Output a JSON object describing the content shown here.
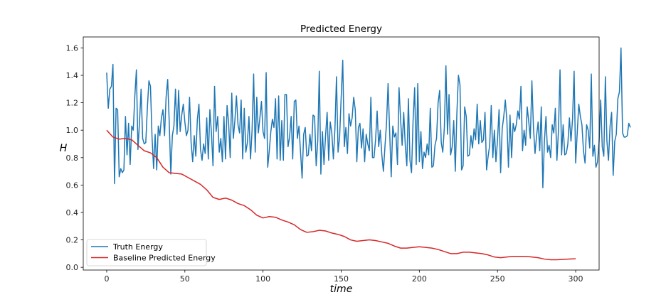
{
  "chart_data": {
    "type": "line",
    "title": "Predicted Energy",
    "xlabel": "time",
    "ylabel": "H",
    "xlim": [
      -15,
      315
    ],
    "ylim": [
      -0.02,
      1.68
    ],
    "x_ticks": [
      0,
      50,
      100,
      150,
      200,
      250,
      300
    ],
    "x_tick_labels": [
      "0",
      "50",
      "100",
      "150",
      "200",
      "250",
      "300"
    ],
    "y_ticks": [
      0.0,
      0.2,
      0.4,
      0.6,
      0.8,
      1.0,
      1.2,
      1.4,
      1.6
    ],
    "y_tick_labels": [
      "0.0",
      "0.2",
      "0.4",
      "0.6",
      "0.8",
      "1.0",
      "1.2",
      "1.4",
      "1.6"
    ],
    "grid": false,
    "legend_position": "lower-left",
    "series": [
      {
        "name": "Truth Energy",
        "color": "#1f77b4",
        "x_start": 0,
        "x_step": 1,
        "values": [
          1.42,
          1.16,
          1.3,
          1.32,
          1.48,
          0.61,
          1.16,
          1.15,
          0.66,
          0.72,
          0.69,
          0.71,
          1.1,
          0.82,
          1.05,
          0.75,
          1.03,
          1.0,
          1.25,
          1.44,
          0.86,
          1.06,
          1.3,
          0.94,
          0.9,
          0.91,
          1.16,
          1.36,
          1.32,
          0.95,
          0.72,
          0.97,
          0.71,
          1.03,
          0.96,
          1.09,
          1.15,
          0.96,
          1.24,
          1.37,
          1.06,
          0.68,
          0.96,
          1.03,
          1.3,
          0.97,
          1.29,
          0.99,
          1.11,
          1.19,
          1.06,
          0.96,
          1.0,
          1.24,
          0.91,
          0.77,
          0.96,
          0.81,
          1.08,
          1.19,
          0.86,
          0.78,
          0.9,
          0.83,
          1.09,
          0.79,
          1.15,
          0.98,
          0.74,
          1.32,
          0.99,
          1.1,
          0.84,
          0.94,
          0.77,
          1.1,
          0.79,
          1.18,
          1.05,
          0.8,
          1.27,
          0.94,
          1.07,
          1.25,
          1.04,
          0.98,
          1.22,
          0.79,
          1.16,
          0.84,
          0.91,
          1.1,
          0.79,
          1.0,
          1.41,
          0.84,
          1.24,
          0.98,
          1.09,
          1.21,
          0.99,
          0.94,
          1.42,
          0.73,
          0.85,
          0.99,
          1.08,
          1.02,
          1.23,
          0.79,
          1.25,
          0.78,
          1.07,
          0.78,
          1.26,
          1.26,
          0.88,
          0.95,
          1.1,
          0.79,
          1.21,
          1.22,
          0.94,
          1.03,
          0.84,
          0.65,
          0.97,
          1.02,
          0.81,
          0.82,
          0.97,
          0.85,
          1.11,
          1.1,
          0.74,
          0.92,
          1.43,
          0.68,
          0.99,
          0.75,
          0.96,
          1.13,
          0.78,
          1.06,
          0.98,
          0.79,
          1.01,
          1.39,
          0.84,
          0.95,
          1.24,
          1.51,
          0.88,
          1.02,
          0.83,
          1.12,
          1.03,
          1.09,
          1.24,
          1.15,
          0.77,
          1.02,
          1.05,
          0.87,
          1.01,
          0.77,
          0.97,
          0.9,
          0.85,
          1.24,
          0.8,
          0.8,
          0.93,
          1.14,
          0.88,
          1.0,
          0.82,
          0.7,
          0.88,
          1.05,
          1.34,
          0.99,
          0.66,
          1.03,
          0.95,
          0.98,
          0.75,
          1.31,
          1.08,
          0.89,
          1.13,
          0.89,
          0.74,
          1.23,
          0.78,
          0.69,
          1.07,
          1.31,
          0.75,
          1.34,
          0.77,
          0.99,
          0.72,
          0.84,
          0.8,
          0.9,
          0.82,
          1.16,
          0.73,
          0.74,
          0.89,
          0.94,
          1.2,
          1.29,
          0.91,
          0.84,
          1.02,
          1.47,
          0.97,
          1.26,
          0.82,
          0.88,
          1.07,
          0.7,
          1.12,
          1.4,
          1.33,
          0.71,
          0.74,
          1.17,
          1.1,
          0.81,
          0.82,
          0.96,
          0.87,
          1.01,
          0.93,
          1.19,
          0.9,
          1.07,
          0.91,
          0.93,
          1.13,
          0.71,
          0.81,
          0.89,
          1.18,
          0.8,
          1.0,
          0.77,
          0.93,
          1.15,
          0.69,
          1.01,
          1.1,
          1.22,
          1.07,
          0.73,
          1.11,
          0.8,
          1.05,
          0.99,
          1.04,
          1.14,
          1.08,
          1.32,
          0.85,
          1.0,
          0.89,
          1.17,
          1.06,
          0.94,
          1.36,
          1.02,
          0.83,
          0.96,
          1.06,
          0.85,
          1.17,
          0.58,
          0.92,
          1.1,
          0.84,
          0.89,
          0.8,
          1.04,
          0.98,
          1.16,
          0.78,
          1.0,
          1.44,
          0.82,
          1.04,
          0.82,
          0.83,
          0.9,
          1.09,
          0.92,
          1.08,
          1.43,
          0.76,
          0.98,
          1.19,
          1.1,
          1.04,
          0.85,
          0.76,
          1.04,
          1.0,
          0.87,
          1.41,
          0.81,
          0.89,
          0.73,
          0.77,
          0.92,
          1.22,
          0.88,
          0.81,
          1.39,
          0.92,
          0.78,
          1.03,
          1.13,
          0.67,
          0.92,
          0.97,
          1.23,
          1.28,
          1.6,
          0.98,
          0.95,
          0.95,
          0.96,
          1.05,
          1.02
        ]
      },
      {
        "name": "Baseline Predicted Energy",
        "color": "#d62728",
        "x": [
          0,
          4,
          8,
          12,
          16,
          20,
          24,
          28,
          32,
          36,
          40,
          44,
          48,
          52,
          56,
          60,
          64,
          68,
          72,
          76,
          80,
          84,
          88,
          92,
          96,
          100,
          104,
          108,
          112,
          116,
          120,
          124,
          128,
          132,
          136,
          140,
          144,
          148,
          152,
          156,
          160,
          164,
          168,
          172,
          176,
          180,
          184,
          188,
          192,
          196,
          200,
          204,
          208,
          212,
          216,
          220,
          224,
          228,
          232,
          236,
          240,
          244,
          248,
          252,
          256,
          260,
          264,
          268,
          272,
          276,
          280,
          284,
          288,
          292,
          296,
          300
        ],
        "values": [
          1.0,
          0.95,
          0.935,
          0.94,
          0.93,
          0.89,
          0.85,
          0.835,
          0.8,
          0.73,
          0.69,
          0.685,
          0.68,
          0.655,
          0.63,
          0.605,
          0.565,
          0.51,
          0.495,
          0.505,
          0.49,
          0.465,
          0.45,
          0.42,
          0.38,
          0.36,
          0.37,
          0.365,
          0.345,
          0.33,
          0.31,
          0.275,
          0.255,
          0.26,
          0.27,
          0.265,
          0.25,
          0.24,
          0.225,
          0.2,
          0.19,
          0.195,
          0.2,
          0.195,
          0.185,
          0.175,
          0.155,
          0.14,
          0.14,
          0.145,
          0.15,
          0.145,
          0.14,
          0.13,
          0.115,
          0.1,
          0.1,
          0.11,
          0.11,
          0.105,
          0.1,
          0.09,
          0.075,
          0.07,
          0.075,
          0.08,
          0.08,
          0.08,
          0.075,
          0.07,
          0.06,
          0.055,
          0.055,
          0.058,
          0.06,
          0.062
        ]
      }
    ]
  }
}
